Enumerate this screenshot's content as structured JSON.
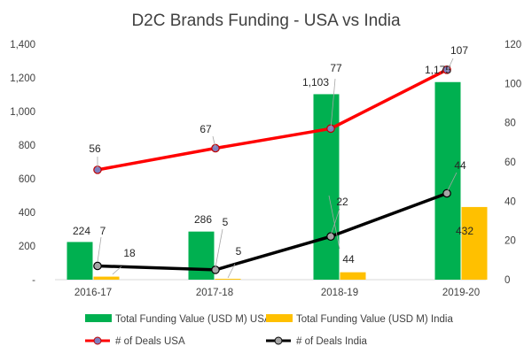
{
  "chart_data": {
    "type": "bar",
    "title": "D2C Brands Funding - USA vs India",
    "categories": [
      "2016-17",
      "2017-18",
      "2018-19",
      "2019-20"
    ],
    "y_left": {
      "min": 0,
      "max": 1400,
      "ticks": [
        "-",
        "200",
        "400",
        "600",
        "800",
        "1,000",
        "1,200",
        "1,400"
      ]
    },
    "y_right": {
      "min": 0,
      "max": 120,
      "ticks": [
        "0",
        "20",
        "40",
        "60",
        "80",
        "100",
        "120"
      ]
    },
    "grid": false,
    "legend_position": "bottom",
    "series": [
      {
        "name": "Total Funding Value (USD M) USA",
        "kind": "bar",
        "axis": "left",
        "color": "#00B050",
        "values": [
          224,
          286,
          1103,
          1175
        ],
        "labels": [
          "224",
          "286",
          "1,103",
          "1,175"
        ]
      },
      {
        "name": "Total Funding Value (USD M) India",
        "kind": "bar",
        "axis": "left",
        "color": "#FFC000",
        "values": [
          18,
          5,
          44,
          432
        ],
        "labels": [
          "18",
          "5",
          "44",
          "432"
        ]
      },
      {
        "name": "# of Deals USA",
        "kind": "line",
        "axis": "right",
        "color": "#FF0000",
        "marker_color": "#7F7FBF",
        "values": [
          56,
          67,
          77,
          107
        ],
        "labels": [
          "56",
          "67",
          "77",
          "107"
        ]
      },
      {
        "name": "# of Deals India",
        "kind": "line",
        "axis": "right",
        "color": "#000000",
        "marker_color": "#A6A6A6",
        "values": [
          7,
          5,
          22,
          44
        ],
        "labels": [
          "7",
          "5",
          "22",
          "44"
        ]
      }
    ]
  }
}
